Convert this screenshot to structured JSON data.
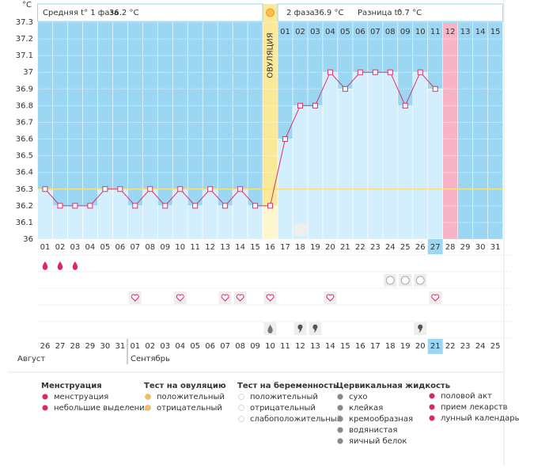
{
  "chart_data": {
    "type": "line",
    "y_unit": "°C",
    "phase1_label": "Средняя t° 1 фаза",
    "phase1_value": "36.2 °C",
    "phase2_label": "2 фаза",
    "phase2_value": "36.9 °C",
    "diff_label": "Разница t°",
    "diff_value": "0.7 °C",
    "ovulation_label": "ОВУЛЯЦИЯ",
    "ovulation_day": 16,
    "categories": [
      "01",
      "02",
      "03",
      "04",
      "05",
      "06",
      "07",
      "08",
      "09",
      "10",
      "11",
      "12",
      "13",
      "14",
      "15",
      "16",
      "17",
      "18",
      "19",
      "20",
      "21",
      "22",
      "23",
      "24",
      "25",
      "26",
      "27",
      "28",
      "29",
      "30",
      "31"
    ],
    "phase2_days": [
      "01",
      "02",
      "03",
      "04",
      "05",
      "06",
      "07",
      "08",
      "09",
      "10",
      "11",
      "12",
      "13",
      "14",
      "15"
    ],
    "series": [
      {
        "name": "t°",
        "color": "#d6336c",
        "values": [
          36.3,
          36.2,
          36.2,
          36.2,
          36.3,
          36.3,
          36.2,
          36.3,
          36.2,
          36.3,
          36.2,
          36.3,
          36.2,
          36.3,
          36.2,
          36.2,
          36.6,
          36.8,
          36.8,
          37,
          36.9,
          37,
          37,
          37,
          36.8,
          37,
          36.9,
          null,
          null,
          null,
          null
        ]
      }
    ],
    "coverline": 36.3,
    "today": 27,
    "period_day": 28,
    "ylim": [
      36,
      37.3
    ],
    "yticks": [
      36,
      36.1,
      36.2,
      36.3,
      36.4,
      36.5,
      36.6,
      36.7,
      36.8,
      36.9,
      37,
      37.1,
      37.2,
      37.3
    ],
    "grid": true,
    "calendar_days": [
      "26",
      "27",
      "28",
      "29",
      "30",
      "31",
      "01",
      "02",
      "03",
      "04",
      "05",
      "06",
      "07",
      "08",
      "09",
      "10",
      "11",
      "12",
      "13",
      "14",
      "15",
      "16",
      "17",
      "18",
      "19",
      "20",
      "21",
      "22",
      "23",
      "24",
      "25"
    ],
    "calendar_red": [
      5,
      6,
      12,
      13,
      19,
      20,
      26,
      27
    ],
    "months": [
      "Август",
      "Сентябрь"
    ],
    "menstruation_days": [
      1,
      2,
      3
    ],
    "pregnancy_test_days": [
      24,
      25,
      26
    ],
    "intercourse_days": [
      7,
      10,
      13,
      14,
      16,
      20,
      27
    ],
    "watery_days": [
      16
    ],
    "creamy_days": [
      18,
      19,
      26
    ],
    "moon_days": [
      18
    ]
  },
  "legend": [
    {
      "title": "Менструация",
      "items": [
        "менструация",
        "небольшие выделения"
      ]
    },
    {
      "title": "Тест на овуляцию",
      "items": [
        "положительный",
        "отрицательный"
      ]
    },
    {
      "title": "Тест на беременность",
      "items": [
        "положительный",
        "отрицательный",
        "слабоположительный"
      ]
    },
    {
      "title": "Цервикальная жидкость",
      "items": [
        "сухо",
        "клейкая",
        "кремообразная",
        "водянистая",
        "яичный белок"
      ]
    },
    {
      "title": null,
      "items": [
        "половой акт",
        "прием лекарств",
        "лунный календарь"
      ]
    }
  ]
}
